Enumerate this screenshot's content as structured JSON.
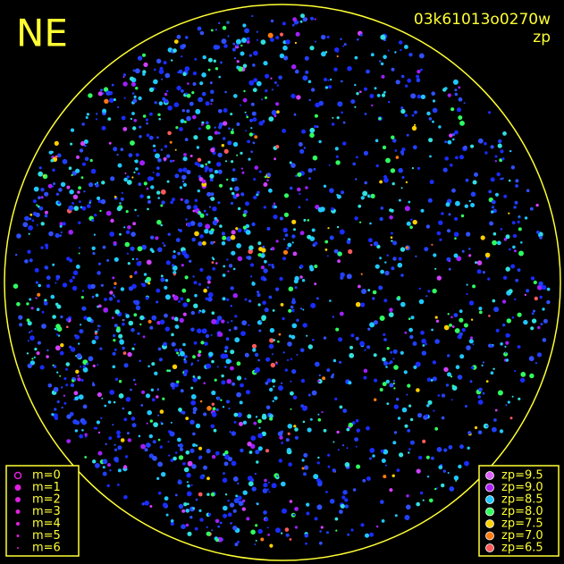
{
  "header": {
    "title": "NE",
    "frame_id": "03k61013o0270w",
    "mode": "zp"
  },
  "legend_m": {
    "items": [
      "m=0",
      "m=1",
      "m=2",
      "m=3",
      "m=4",
      "m=5",
      "m=6"
    ],
    "color": "#e020e0"
  },
  "legend_zp": {
    "items": [
      {
        "label": "zp=9.5",
        "color": "#e060ff"
      },
      {
        "label": "zp=9.0",
        "color": "#b020ff"
      },
      {
        "label": "zp=8.5",
        "color": "#20c8ff"
      },
      {
        "label": "zp=8.0",
        "color": "#30ff60"
      },
      {
        "label": "zp=7.5",
        "color": "#ffd000"
      },
      {
        "label": "zp=7.0",
        "color": "#ff7a10"
      },
      {
        "label": "zp=6.5",
        "color": "#ff5a5a"
      }
    ]
  }
}
